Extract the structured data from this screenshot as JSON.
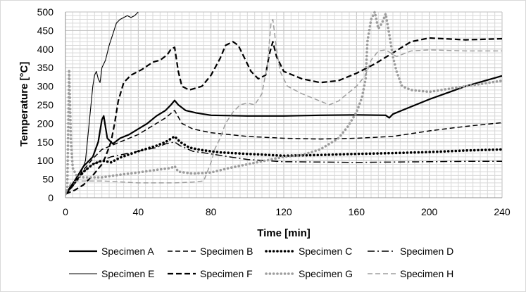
{
  "chart_data": {
    "type": "line",
    "xlabel": "Time [min]",
    "ylabel": "Temperature [°C]",
    "xlim": [
      0,
      240
    ],
    "ylim": [
      0,
      500
    ],
    "xticks": [
      0,
      40,
      80,
      120,
      160,
      200,
      240
    ],
    "yticks": [
      0,
      50,
      100,
      150,
      200,
      250,
      300,
      350,
      400,
      450,
      500
    ],
    "grid": "major and minor",
    "legend_position": "bottom",
    "series": [
      {
        "name": "Specimen A",
        "color": "#000000",
        "style": "solid-thick",
        "points": [
          [
            0,
            10
          ],
          [
            5,
            45
          ],
          [
            10,
            85
          ],
          [
            15,
            110
          ],
          [
            18,
            150
          ],
          [
            20,
            210
          ],
          [
            21,
            220
          ],
          [
            23,
            160
          ],
          [
            26,
            145
          ],
          [
            30,
            160
          ],
          [
            35,
            170
          ],
          [
            40,
            185
          ],
          [
            45,
            200
          ],
          [
            50,
            220
          ],
          [
            55,
            235
          ],
          [
            58,
            250
          ],
          [
            60,
            262
          ],
          [
            62,
            250
          ],
          [
            66,
            235
          ],
          [
            72,
            228
          ],
          [
            80,
            222
          ],
          [
            100,
            220
          ],
          [
            120,
            220
          ],
          [
            140,
            222
          ],
          [
            160,
            223
          ],
          [
            176,
            222
          ],
          [
            178,
            215
          ],
          [
            180,
            225
          ],
          [
            185,
            235
          ],
          [
            200,
            265
          ],
          [
            220,
            300
          ],
          [
            240,
            328
          ]
        ]
      },
      {
        "name": "Specimen B",
        "color": "#000000",
        "style": "dashed",
        "points": [
          [
            0,
            10
          ],
          [
            5,
            40
          ],
          [
            10,
            75
          ],
          [
            15,
            105
          ],
          [
            20,
            130
          ],
          [
            25,
            140
          ],
          [
            30,
            150
          ],
          [
            40,
            170
          ],
          [
            50,
            200
          ],
          [
            55,
            215
          ],
          [
            60,
            235
          ],
          [
            64,
            200
          ],
          [
            70,
            185
          ],
          [
            80,
            175
          ],
          [
            100,
            165
          ],
          [
            120,
            160
          ],
          [
            140,
            158
          ],
          [
            160,
            160
          ],
          [
            180,
            165
          ],
          [
            200,
            180
          ],
          [
            220,
            192
          ],
          [
            240,
            202
          ]
        ]
      },
      {
        "name": "Specimen C",
        "color": "#000000",
        "style": "dotted-thick",
        "points": [
          [
            0,
            10
          ],
          [
            5,
            40
          ],
          [
            10,
            70
          ],
          [
            15,
            90
          ],
          [
            20,
            100
          ],
          [
            25,
            95
          ],
          [
            30,
            108
          ],
          [
            40,
            125
          ],
          [
            50,
            140
          ],
          [
            55,
            150
          ],
          [
            60,
            165
          ],
          [
            63,
            150
          ],
          [
            68,
            135
          ],
          [
            75,
            128
          ],
          [
            85,
            122
          ],
          [
            100,
            118
          ],
          [
            120,
            113
          ],
          [
            140,
            115
          ],
          [
            160,
            118
          ],
          [
            180,
            120
          ],
          [
            200,
            123
          ],
          [
            220,
            127
          ],
          [
            240,
            130
          ]
        ]
      },
      {
        "name": "Specimen D",
        "color": "#000000",
        "style": "dashdot",
        "points": [
          [
            0,
            10
          ],
          [
            5,
            40
          ],
          [
            10,
            70
          ],
          [
            15,
            90
          ],
          [
            20,
            100
          ],
          [
            25,
            110
          ],
          [
            30,
            115
          ],
          [
            40,
            125
          ],
          [
            50,
            135
          ],
          [
            55,
            145
          ],
          [
            60,
            150
          ],
          [
            63,
            140
          ],
          [
            70,
            125
          ],
          [
            80,
            118
          ],
          [
            90,
            110
          ],
          [
            100,
            103
          ],
          [
            110,
            100
          ],
          [
            120,
            97
          ],
          [
            140,
            96
          ],
          [
            160,
            95
          ],
          [
            180,
            96
          ],
          [
            200,
            97
          ],
          [
            220,
            98
          ],
          [
            240,
            98
          ]
        ]
      },
      {
        "name": "Specimen E",
        "color": "#000000",
        "style": "solid-thin",
        "points": [
          [
            0,
            10
          ],
          [
            4,
            30
          ],
          [
            8,
            60
          ],
          [
            11,
            100
          ],
          [
            13,
            200
          ],
          [
            15,
            300
          ],
          [
            16,
            330
          ],
          [
            17,
            340
          ],
          [
            18,
            320
          ],
          [
            19,
            310
          ],
          [
            20,
            350
          ],
          [
            22,
            370
          ],
          [
            24,
            410
          ],
          [
            26,
            440
          ],
          [
            28,
            470
          ],
          [
            30,
            480
          ],
          [
            32,
            485
          ],
          [
            34,
            490
          ],
          [
            36,
            485
          ],
          [
            38,
            490
          ],
          [
            40,
            500
          ]
        ]
      },
      {
        "name": "Specimen F",
        "color": "#000000",
        "style": "dashed-thick",
        "points": [
          [
            0,
            10
          ],
          [
            5,
            20
          ],
          [
            10,
            35
          ],
          [
            15,
            60
          ],
          [
            20,
            90
          ],
          [
            22,
            110
          ],
          [
            25,
            150
          ],
          [
            27,
            200
          ],
          [
            29,
            260
          ],
          [
            32,
            310
          ],
          [
            36,
            330
          ],
          [
            42,
            345
          ],
          [
            48,
            365
          ],
          [
            52,
            370
          ],
          [
            56,
            385
          ],
          [
            58,
            400
          ],
          [
            60,
            405
          ],
          [
            62,
            340
          ],
          [
            64,
            300
          ],
          [
            68,
            290
          ],
          [
            75,
            300
          ],
          [
            80,
            330
          ],
          [
            85,
            375
          ],
          [
            88,
            410
          ],
          [
            92,
            420
          ],
          [
            95,
            410
          ],
          [
            98,
            380
          ],
          [
            102,
            340
          ],
          [
            106,
            320
          ],
          [
            110,
            330
          ],
          [
            112,
            385
          ],
          [
            114,
            420
          ],
          [
            116,
            380
          ],
          [
            120,
            340
          ],
          [
            130,
            320
          ],
          [
            140,
            310
          ],
          [
            150,
            315
          ],
          [
            160,
            335
          ],
          [
            170,
            360
          ],
          [
            180,
            390
          ],
          [
            190,
            420
          ],
          [
            200,
            430
          ],
          [
            220,
            425
          ],
          [
            240,
            428
          ]
        ]
      },
      {
        "name": "Specimen G",
        "color": "#9e9e9e",
        "style": "dotted-thick",
        "points": [
          [
            0,
            10
          ],
          [
            1,
            30
          ],
          [
            2,
            345
          ],
          [
            3,
            150
          ],
          [
            4,
            80
          ],
          [
            6,
            60
          ],
          [
            10,
            55
          ],
          [
            20,
            55
          ],
          [
            30,
            62
          ],
          [
            40,
            68
          ],
          [
            50,
            75
          ],
          [
            58,
            80
          ],
          [
            60,
            85
          ],
          [
            62,
            70
          ],
          [
            70,
            65
          ],
          [
            80,
            68
          ],
          [
            90,
            80
          ],
          [
            100,
            90
          ],
          [
            110,
            100
          ],
          [
            120,
            110
          ],
          [
            130,
            115
          ],
          [
            140,
            130
          ],
          [
            150,
            160
          ],
          [
            155,
            190
          ],
          [
            160,
            230
          ],
          [
            163,
            270
          ],
          [
            165,
            320
          ],
          [
            166,
            420
          ],
          [
            168,
            480
          ],
          [
            170,
            500
          ],
          [
            172,
            455
          ],
          [
            174,
            470
          ],
          [
            176,
            495
          ],
          [
            178,
            440
          ],
          [
            180,
            380
          ],
          [
            182,
            340
          ],
          [
            185,
            300
          ],
          [
            190,
            290
          ],
          [
            200,
            285
          ],
          [
            220,
            300
          ],
          [
            240,
            315
          ]
        ]
      },
      {
        "name": "Specimen H",
        "color": "#9e9e9e",
        "style": "dashed",
        "points": [
          [
            0,
            10
          ],
          [
            3,
            40
          ],
          [
            6,
            45
          ],
          [
            20,
            45
          ],
          [
            40,
            40
          ],
          [
            60,
            40
          ],
          [
            70,
            42
          ],
          [
            76,
            45
          ],
          [
            80,
            95
          ],
          [
            82,
            130
          ],
          [
            85,
            160
          ],
          [
            88,
            200
          ],
          [
            92,
            230
          ],
          [
            96,
            250
          ],
          [
            100,
            255
          ],
          [
            104,
            250
          ],
          [
            108,
            280
          ],
          [
            111,
            360
          ],
          [
            113,
            470
          ],
          [
            114,
            480
          ],
          [
            116,
            400
          ],
          [
            118,
            340
          ],
          [
            122,
            300
          ],
          [
            130,
            280
          ],
          [
            140,
            260
          ],
          [
            145,
            250
          ],
          [
            150,
            260
          ],
          [
            160,
            300
          ],
          [
            165,
            330
          ],
          [
            168,
            370
          ],
          [
            172,
            395
          ],
          [
            176,
            398
          ],
          [
            182,
            380
          ],
          [
            190,
            395
          ],
          [
            200,
            398
          ],
          [
            220,
            395
          ],
          [
            240,
            395
          ]
        ]
      }
    ]
  }
}
